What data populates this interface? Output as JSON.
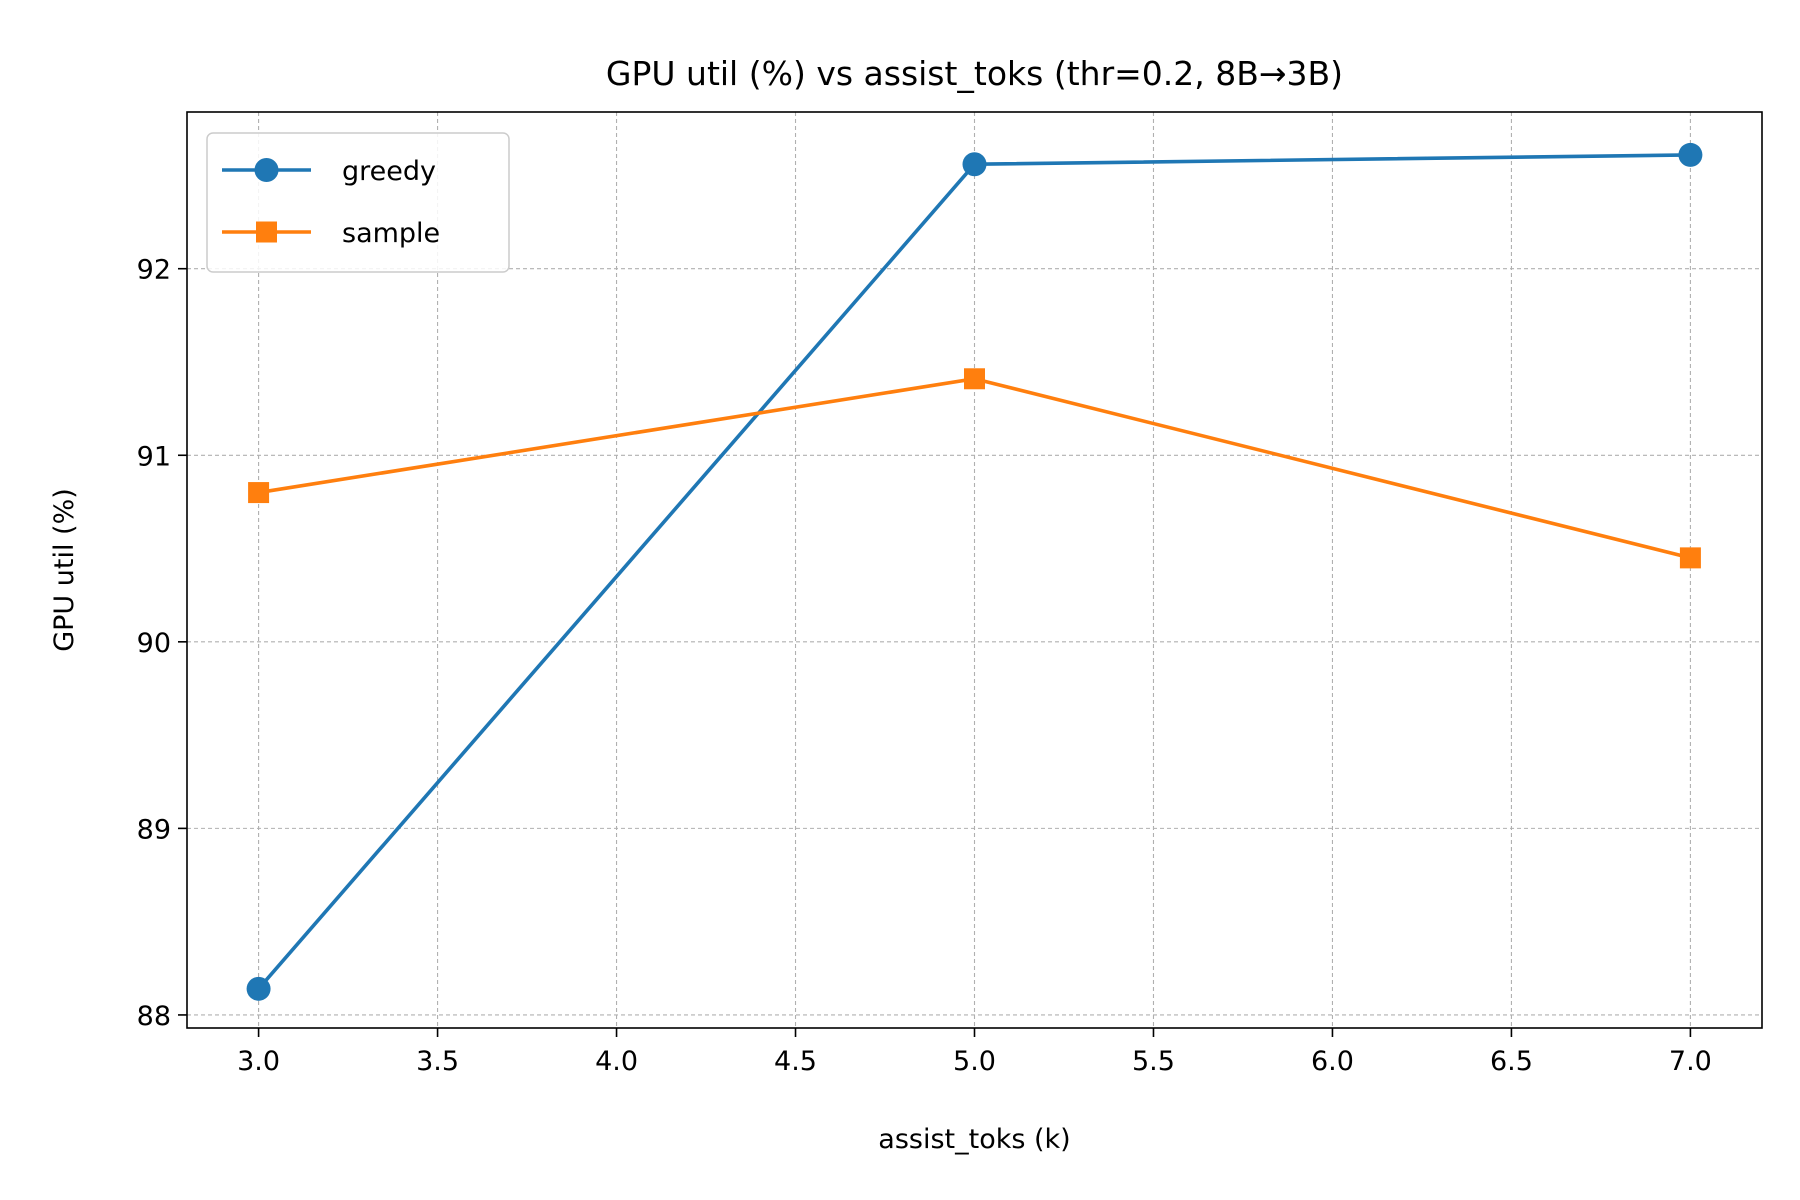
{
  "chart_data": {
    "type": "line",
    "title": "GPU util (%) vs assist_toks (thr=0.2, 8B→3B)",
    "xlabel": "assist_toks (k)",
    "ylabel": "GPU util (%)",
    "xlim": [
      2.8,
      7.2
    ],
    "ylim": [
      87.93,
      92.84
    ],
    "xticks": [
      3.0,
      3.5,
      4.0,
      4.5,
      5.0,
      5.5,
      6.0,
      6.5,
      7.0
    ],
    "xtick_labels": [
      "3.0",
      "3.5",
      "4.0",
      "4.5",
      "5.0",
      "5.5",
      "6.0",
      "6.5",
      "7.0"
    ],
    "yticks": [
      88,
      89,
      90,
      91,
      92
    ],
    "ytick_labels": [
      "88",
      "89",
      "90",
      "91",
      "92"
    ],
    "grid": true,
    "legend_position": "top-left",
    "x": [
      3.0,
      5.0,
      7.0
    ],
    "series": [
      {
        "name": "greedy",
        "values": [
          88.14,
          92.56,
          92.61
        ],
        "color": "#1f77b4",
        "marker": "circle"
      },
      {
        "name": "sample",
        "values": [
          90.8,
          91.41,
          90.45
        ],
        "color": "#ff7f0e",
        "marker": "square"
      }
    ]
  }
}
